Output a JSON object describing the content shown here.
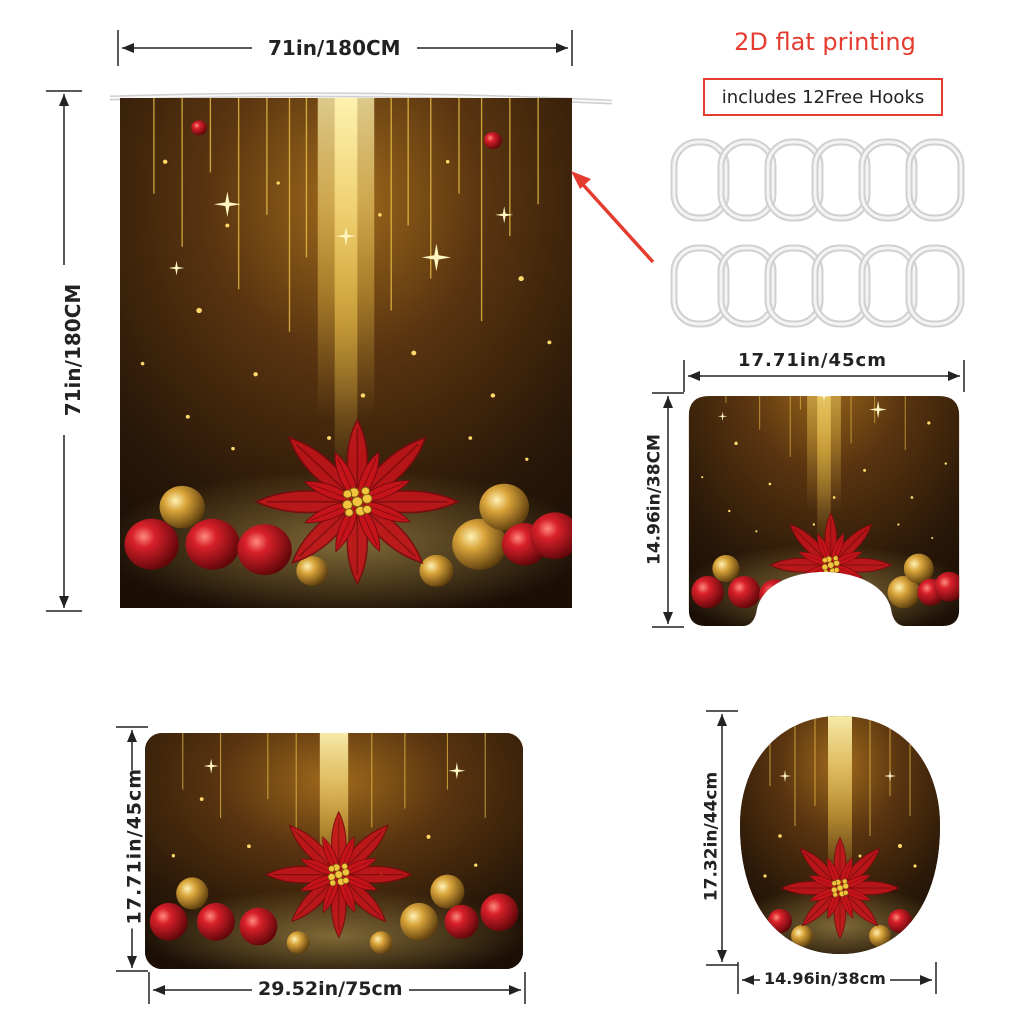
{
  "header": {
    "print_type": "2D flat printing",
    "hooks_note": "includes 12Free Hooks"
  },
  "curtain": {
    "width_label": "71in/180CM",
    "height_label": "71in/180CM"
  },
  "u_mat": {
    "width_label": "17.71in/45cm",
    "height_label": "14.96in/38CM"
  },
  "bath_mat": {
    "width_label": "29.52in/75cm",
    "height_label": "17.71in/45cm"
  },
  "lid_cover": {
    "width_label": "14.96in/38cm",
    "height_label": "17.32in/44cm"
  },
  "hooks": {
    "count": 12
  },
  "colors": {
    "accent_red": "#e53c30",
    "background_dark": "#2a1808",
    "gold": "#e8b53a",
    "poinsettia_red": "#c4141a"
  }
}
